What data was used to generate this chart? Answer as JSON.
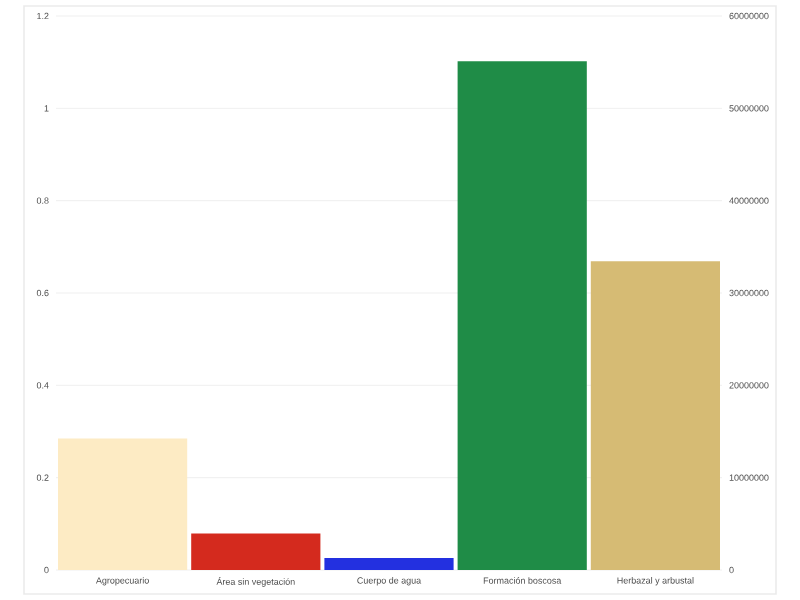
{
  "chart_data": {
    "type": "bar",
    "categories": [
      "Agropecuario",
      "Área sin vegetación",
      "Cuerpo de agua",
      "Formación boscosa",
      "Herbazal y arbustal"
    ],
    "values": [
      0.285,
      0.079,
      0.026,
      1.102,
      0.669
    ],
    "colors": [
      "#fdebc4",
      "#d42a1e",
      "#2330e0",
      "#1f8c47",
      "#d6bb74"
    ],
    "ylim": [
      0,
      1.2
    ],
    "yticks": [
      0,
      0.2,
      0.4,
      0.6,
      0.8,
      1,
      1.2
    ],
    "y2lim": [
      0,
      60000000
    ],
    "y2ticks": [
      0,
      10000000,
      20000000,
      30000000,
      40000000,
      50000000,
      60000000
    ],
    "grid": "y"
  }
}
